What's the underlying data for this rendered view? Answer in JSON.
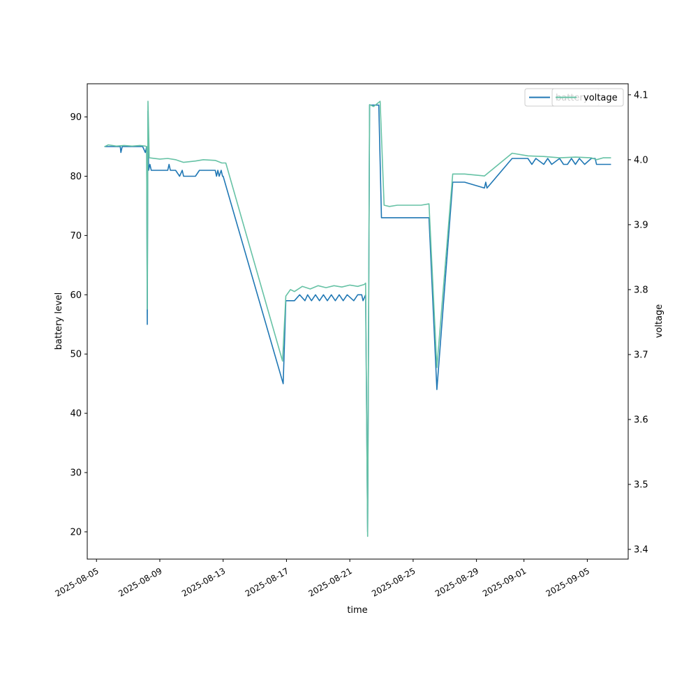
{
  "chart_data": {
    "type": "line",
    "xlabel": "time",
    "ylabel_left": "battery level",
    "ylabel_right": "voltage",
    "xlim": [
      "2025-08-04T10:00",
      "2025-09-07T14:00"
    ],
    "ylim_left": [
      15.4,
      95.6
    ],
    "ylim_right": [
      3.385,
      4.117
    ],
    "x_tick_labels": [
      "2025-08-05",
      "2025-08-09",
      "2025-08-13",
      "2025-08-17",
      "2025-08-21",
      "2025-08-25",
      "2025-08-29",
      "2025-09-01",
      "2025-09-05"
    ],
    "y_left_ticks": [
      20,
      30,
      40,
      50,
      60,
      70,
      80,
      90
    ],
    "y_right_ticks": [
      3.4,
      3.5,
      3.6,
      3.7,
      3.8,
      3.9,
      4.0,
      4.1
    ],
    "grid": false,
    "legends": [
      {
        "placement": "top-right",
        "entries": [
          {
            "label": "battery",
            "color": "#1f77b4"
          }
        ]
      },
      {
        "placement": "top-right",
        "entries": [
          {
            "label": "voltage",
            "color": "#66c2a5"
          }
        ]
      }
    ],
    "series": [
      {
        "name": "battery",
        "axis": "left",
        "color": "#1f77b4",
        "points": [
          [
            "2025-08-05T12:00",
            85
          ],
          [
            "2025-08-06T12:00",
            85
          ],
          [
            "2025-08-06T13:00",
            84
          ],
          [
            "2025-08-06T15:00",
            85
          ],
          [
            "2025-08-07T12:00",
            85
          ],
          [
            "2025-08-07T22:00",
            85
          ],
          [
            "2025-08-08T02:00",
            84
          ],
          [
            "2025-08-08T04:00",
            85
          ],
          [
            "2025-08-08T05:00",
            55
          ],
          [
            "2025-08-08T06:00",
            91
          ],
          [
            "2025-08-08T07:00",
            81
          ],
          [
            "2025-08-08T09:00",
            82
          ],
          [
            "2025-08-08T11:00",
            81
          ],
          [
            "2025-08-09T12:00",
            81
          ],
          [
            "2025-08-09T14:00",
            82
          ],
          [
            "2025-08-09T16:00",
            81
          ],
          [
            "2025-08-10T00:00",
            81
          ],
          [
            "2025-08-10T06:00",
            80
          ],
          [
            "2025-08-10T10:00",
            81
          ],
          [
            "2025-08-10T12:00",
            80
          ],
          [
            "2025-08-11T06:00",
            80
          ],
          [
            "2025-08-11T12:00",
            81
          ],
          [
            "2025-08-12T12:00",
            81
          ],
          [
            "2025-08-12T14:00",
            80
          ],
          [
            "2025-08-12T16:00",
            81
          ],
          [
            "2025-08-12T18:00",
            80
          ],
          [
            "2025-08-12T21:00",
            81
          ],
          [
            "2025-08-12T23:00",
            80
          ],
          [
            "2025-08-13T00:00",
            80
          ],
          [
            "2025-08-16T19:00",
            45
          ],
          [
            "2025-08-16T23:00",
            59
          ],
          [
            "2025-08-17T12:00",
            59
          ],
          [
            "2025-08-17T20:00",
            60
          ],
          [
            "2025-08-18T04:00",
            59
          ],
          [
            "2025-08-18T08:00",
            60
          ],
          [
            "2025-08-18T14:00",
            59
          ],
          [
            "2025-08-18T20:00",
            60
          ],
          [
            "2025-08-19T02:00",
            59
          ],
          [
            "2025-08-19T08:00",
            60
          ],
          [
            "2025-08-19T14:00",
            59
          ],
          [
            "2025-08-19T20:00",
            60
          ],
          [
            "2025-08-20T02:00",
            59
          ],
          [
            "2025-08-20T08:00",
            60
          ],
          [
            "2025-08-20T14:00",
            59
          ],
          [
            "2025-08-20T20:00",
            60
          ],
          [
            "2025-08-21T06:00",
            59
          ],
          [
            "2025-08-21T12:00",
            60
          ],
          [
            "2025-08-21T18:00",
            60
          ],
          [
            "2025-08-21T20:00",
            59
          ],
          [
            "2025-08-22T00:00",
            60
          ],
          [
            "2025-08-22T03:00",
            20
          ],
          [
            "2025-08-22T06:00",
            92
          ],
          [
            "2025-08-22T20:00",
            92
          ],
          [
            "2025-08-23T00:00",
            73
          ],
          [
            "2025-08-24T12:00",
            73
          ],
          [
            "2025-08-25T12:00",
            73
          ],
          [
            "2025-08-26T00:00",
            73
          ],
          [
            "2025-08-26T12:00",
            44
          ],
          [
            "2025-08-27T12:00",
            79
          ],
          [
            "2025-08-28T06:00",
            79
          ],
          [
            "2025-08-29T12:00",
            78
          ],
          [
            "2025-08-29T14:00",
            79
          ],
          [
            "2025-08-29T16:00",
            78
          ],
          [
            "2025-08-31T06:00",
            83
          ],
          [
            "2025-09-01T06:00",
            83
          ],
          [
            "2025-09-01T12:00",
            82
          ],
          [
            "2025-09-01T18:00",
            83
          ],
          [
            "2025-09-02T06:00",
            82
          ],
          [
            "2025-09-02T12:00",
            83
          ],
          [
            "2025-09-02T18:00",
            82
          ],
          [
            "2025-09-03T06:00",
            83
          ],
          [
            "2025-09-03T12:00",
            82
          ],
          [
            "2025-09-03T18:00",
            82
          ],
          [
            "2025-09-04T00:00",
            83
          ],
          [
            "2025-09-04T06:00",
            82
          ],
          [
            "2025-09-04T12:00",
            83
          ],
          [
            "2025-09-04T20:00",
            82
          ],
          [
            "2025-09-05T06:00",
            83
          ],
          [
            "2025-09-05T12:00",
            83
          ],
          [
            "2025-09-05T14:00",
            82
          ],
          [
            "2025-09-06T12:00",
            82
          ]
        ]
      },
      {
        "name": "voltage",
        "axis": "right",
        "color": "#66c2a5",
        "points": [
          [
            "2025-08-05T12:00",
            4.02
          ],
          [
            "2025-08-05T18:00",
            4.023
          ],
          [
            "2025-08-06T06:00",
            4.021
          ],
          [
            "2025-08-06T18:00",
            4.022
          ],
          [
            "2025-08-07T06:00",
            4.021
          ],
          [
            "2025-08-07T18:00",
            4.022
          ],
          [
            "2025-08-08T02:00",
            4.021
          ],
          [
            "2025-08-08T04:00",
            4.02
          ],
          [
            "2025-08-08T05:00",
            3.77
          ],
          [
            "2025-08-08T06:00",
            4.09
          ],
          [
            "2025-08-08T08:00",
            4.003
          ],
          [
            "2025-08-09T00:00",
            4.001
          ],
          [
            "2025-08-09T12:00",
            4.002
          ],
          [
            "2025-08-10T00:00",
            4.0
          ],
          [
            "2025-08-10T12:00",
            3.996
          ],
          [
            "2025-08-11T06:00",
            3.998
          ],
          [
            "2025-08-11T18:00",
            4.0
          ],
          [
            "2025-08-12T12:00",
            3.999
          ],
          [
            "2025-08-12T22:00",
            3.995
          ],
          [
            "2025-08-13T04:00",
            3.995
          ],
          [
            "2025-08-16T18:00",
            3.69
          ],
          [
            "2025-08-16T23:00",
            3.79
          ],
          [
            "2025-08-17T06:00",
            3.8
          ],
          [
            "2025-08-17T12:00",
            3.797
          ],
          [
            "2025-08-18T00:00",
            3.805
          ],
          [
            "2025-08-18T12:00",
            3.801
          ],
          [
            "2025-08-19T00:00",
            3.806
          ],
          [
            "2025-08-19T12:00",
            3.803
          ],
          [
            "2025-08-20T00:00",
            3.806
          ],
          [
            "2025-08-20T12:00",
            3.804
          ],
          [
            "2025-08-21T00:00",
            3.807
          ],
          [
            "2025-08-21T12:00",
            3.805
          ],
          [
            "2025-08-21T22:00",
            3.808
          ],
          [
            "2025-08-22T00:00",
            3.81
          ],
          [
            "2025-08-22T03:00",
            3.42
          ],
          [
            "2025-08-22T06:00",
            4.085
          ],
          [
            "2025-08-22T12:00",
            4.082
          ],
          [
            "2025-08-22T22:00",
            4.09
          ],
          [
            "2025-08-23T04:00",
            3.93
          ],
          [
            "2025-08-23T12:00",
            3.928
          ],
          [
            "2025-08-24T00:00",
            3.93
          ],
          [
            "2025-08-25T00:00",
            3.93
          ],
          [
            "2025-08-25T12:00",
            3.93
          ],
          [
            "2025-08-26T00:00",
            3.932
          ],
          [
            "2025-08-26T12:00",
            3.68
          ],
          [
            "2025-08-27T12:00",
            3.978
          ],
          [
            "2025-08-28T06:00",
            3.978
          ],
          [
            "2025-08-29T12:00",
            3.975
          ],
          [
            "2025-08-31T06:00",
            4.01
          ],
          [
            "2025-09-01T06:00",
            4.006
          ],
          [
            "2025-09-02T06:00",
            4.005
          ],
          [
            "2025-09-03T06:00",
            4.003
          ],
          [
            "2025-09-04T06:00",
            4.004
          ],
          [
            "2025-09-05T06:00",
            4.003
          ],
          [
            "2025-09-05T14:00",
            4.0
          ],
          [
            "2025-09-06T00:00",
            4.003
          ],
          [
            "2025-09-06T12:00",
            4.003
          ]
        ]
      }
    ]
  }
}
